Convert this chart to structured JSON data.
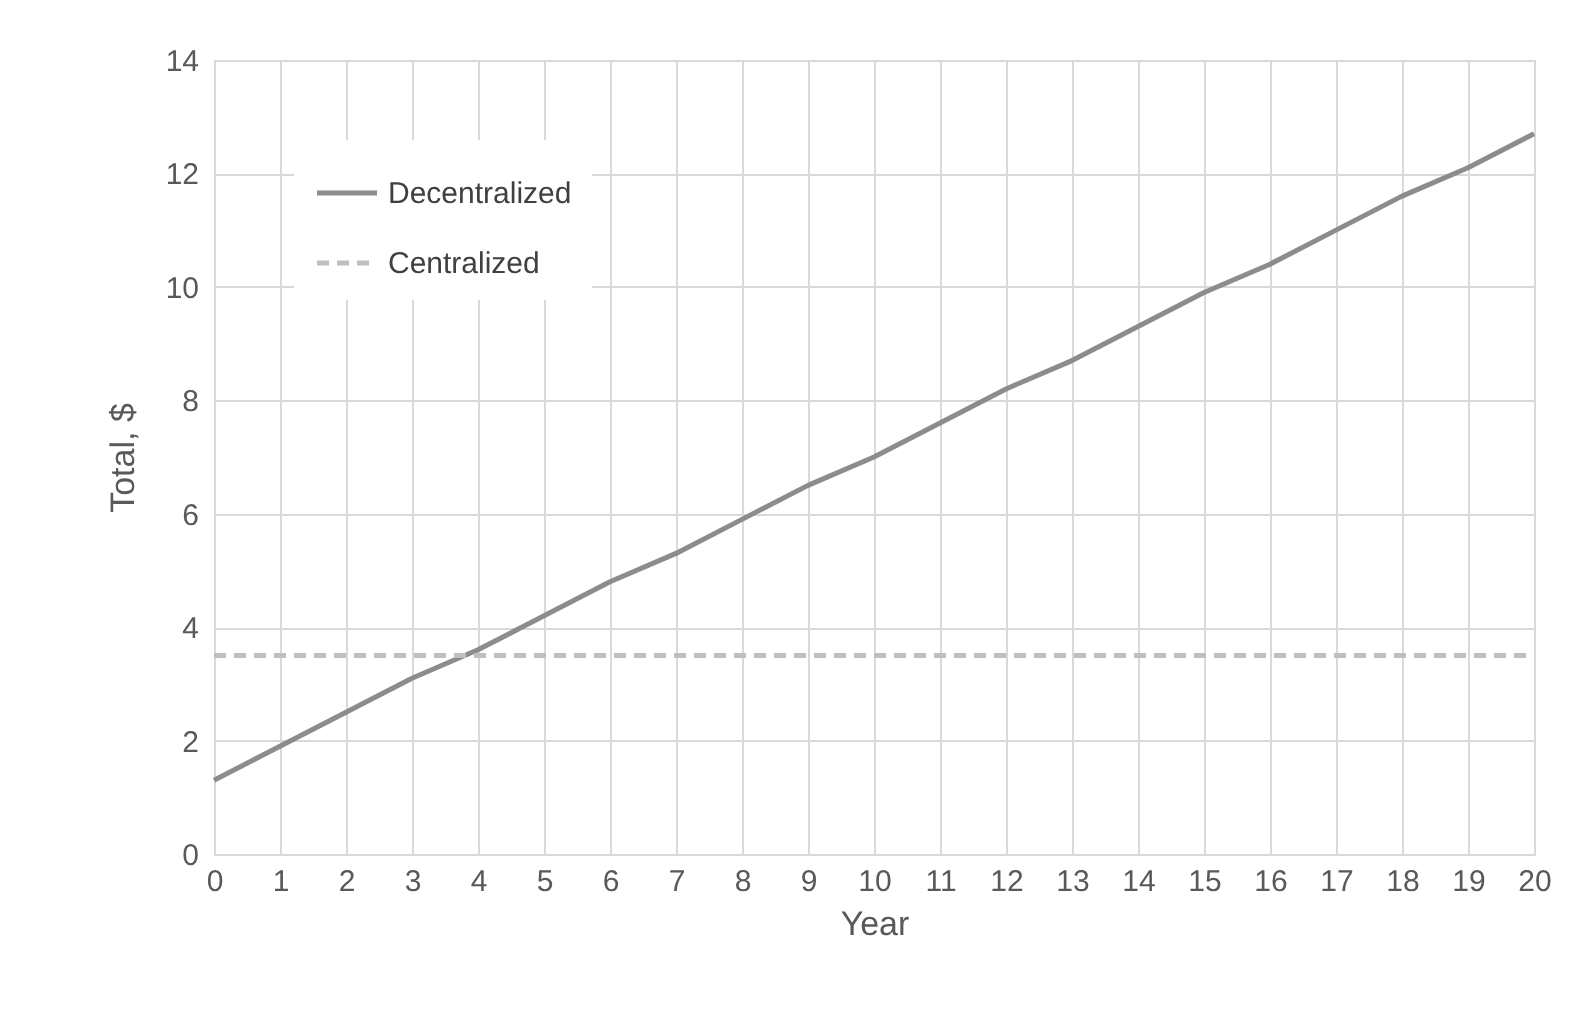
{
  "chart_data": {
    "type": "line",
    "xlabel": "Year",
    "ylabel": "Total, $",
    "xlim": [
      0,
      20
    ],
    "xticks": [
      0,
      1,
      2,
      3,
      4,
      5,
      6,
      7,
      8,
      9,
      10,
      11,
      12,
      13,
      14,
      15,
      16,
      17,
      18,
      19,
      20
    ],
    "ylim": [
      0,
      14
    ],
    "yticks": [
      0,
      2,
      4,
      6,
      8,
      10,
      12,
      14
    ],
    "grid": true,
    "legend": "top left",
    "marker": "none",
    "series": [
      {
        "name": "Decentralized",
        "color": "#8c8c8c",
        "line_style": "solid",
        "x": [
          0,
          1,
          2,
          3,
          4,
          5,
          6,
          7,
          8,
          9,
          10,
          11,
          12,
          13,
          14,
          15,
          16,
          17,
          18,
          19,
          20
        ],
        "values": [
          1.3,
          1.9,
          2.5,
          3.1,
          3.6,
          4.2,
          4.8,
          5.3,
          5.9,
          6.5,
          7.0,
          7.6,
          8.2,
          8.7,
          9.3,
          9.9,
          10.4,
          11.0,
          11.6,
          12.1,
          12.7
        ]
      },
      {
        "name": "Centralized",
        "color": "#bfbfbf",
        "line_style": "dashed",
        "x": [
          0,
          20
        ],
        "values": [
          3.5,
          3.5
        ]
      }
    ]
  }
}
